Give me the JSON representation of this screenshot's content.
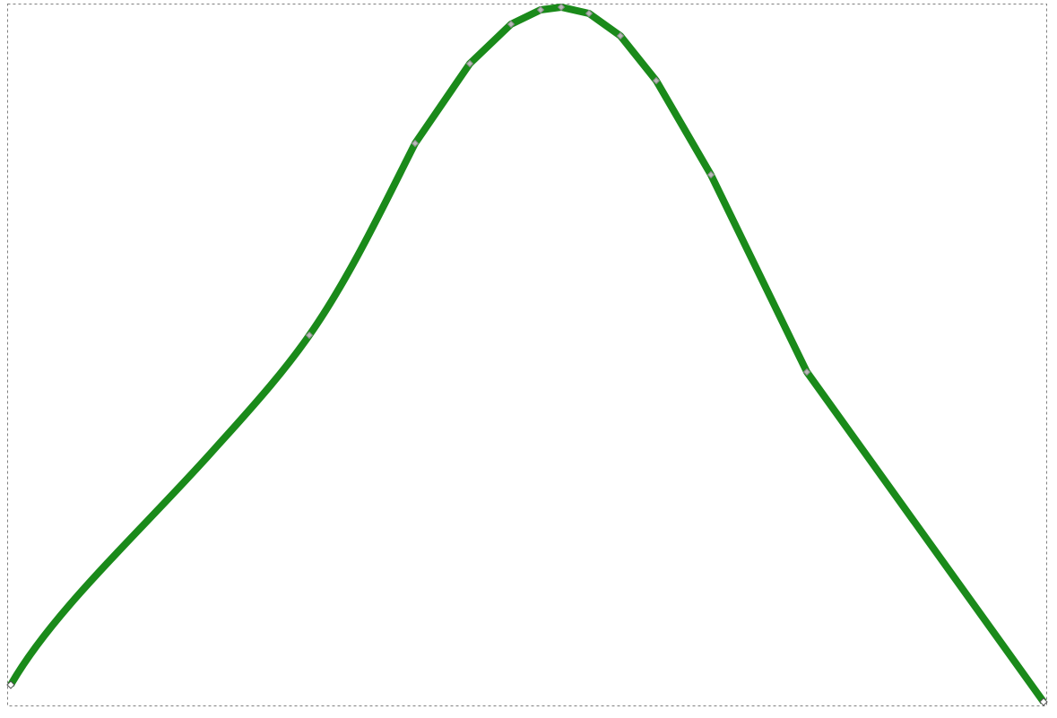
{
  "canvas": {
    "background": "#ffffff",
    "stroke_color": "#1a8a1a",
    "bbox_dash_color": "#808080",
    "node_fill": "#b8b8b8",
    "node_stroke": "#8a8a8a",
    "end_node_fill": "#ffffff",
    "end_node_stroke": "#555555"
  },
  "selection": {
    "tool": "node-edit",
    "selected_object": "path"
  }
}
